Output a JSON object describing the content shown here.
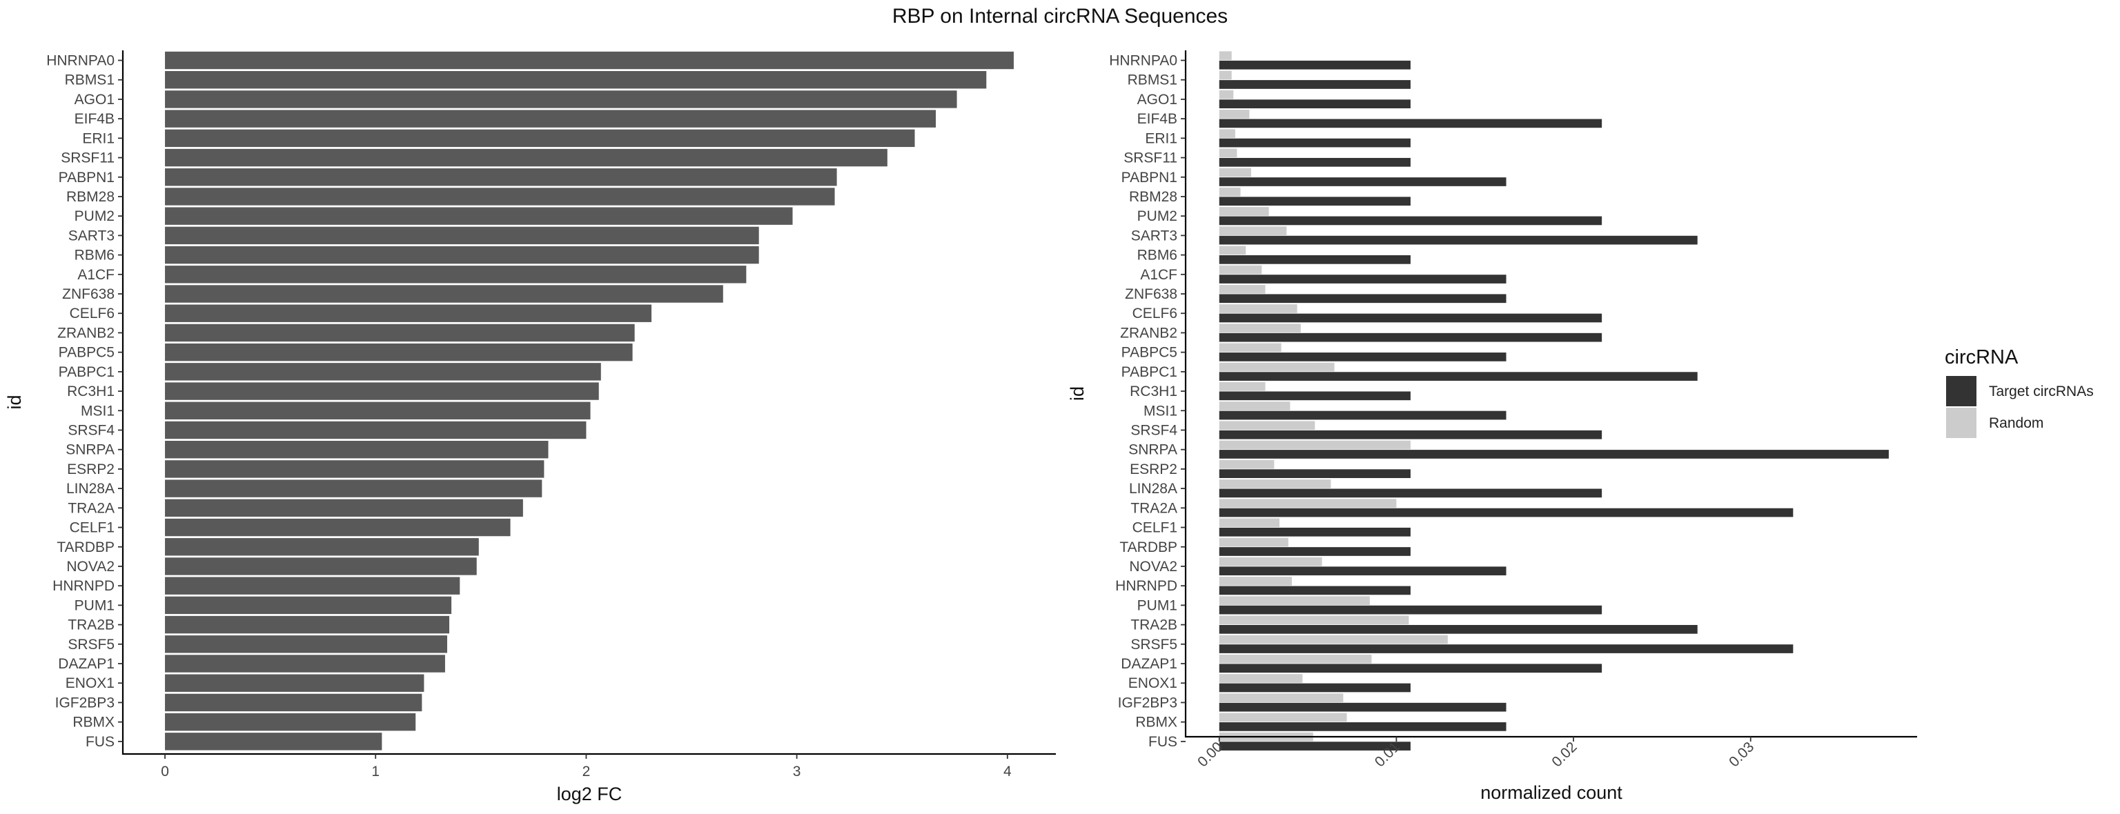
{
  "title": "RBP on Internal circRNA Sequences",
  "chart_data": [
    {
      "type": "bar",
      "orientation": "horizontal",
      "xlabel": "log2 FC",
      "ylabel": "id",
      "xlim": [
        -0.2,
        4.23
      ],
      "xticks": [
        "0",
        "1",
        "2",
        "3",
        "4"
      ],
      "grid": false,
      "bar_color": "#595959",
      "categories": [
        "HNRNPA0",
        "RBMS1",
        "AGO1",
        "EIF4B",
        "ERI1",
        "SRSF11",
        "PABPN1",
        "RBM28",
        "PUM2",
        "SART3",
        "RBM6",
        "A1CF",
        "ZNF638",
        "CELF6",
        "ZRANB2",
        "PABPC5",
        "PABPC1",
        "RC3H1",
        "MSI1",
        "SRSF4",
        "SNRPA",
        "ESRP2",
        "LIN28A",
        "TRA2A",
        "CELF1",
        "TARDBP",
        "NOVA2",
        "HNRNPD",
        "PUM1",
        "TRA2B",
        "SRSF5",
        "DAZAP1",
        "ENOX1",
        "IGF2BP3",
        "RBMX",
        "FUS"
      ],
      "values": [
        4.03,
        3.9,
        3.76,
        3.66,
        3.56,
        3.43,
        3.19,
        3.18,
        2.98,
        2.82,
        2.82,
        2.76,
        2.65,
        2.31,
        2.23,
        2.22,
        2.07,
        2.06,
        2.02,
        2.0,
        1.82,
        1.8,
        1.79,
        1.7,
        1.64,
        1.49,
        1.48,
        1.4,
        1.36,
        1.35,
        1.34,
        1.33,
        1.23,
        1.22,
        1.19,
        1.03
      ]
    },
    {
      "type": "bar",
      "orientation": "horizontal",
      "grouped": true,
      "xlabel": "normalized count",
      "ylabel": "id",
      "xlim": [
        -0.0019,
        0.0394
      ],
      "xticks": [
        "0.00",
        "0.01",
        "0.02",
        "0.03"
      ],
      "grid": false,
      "legend": {
        "title": "circRNA",
        "position": "right"
      },
      "categories": [
        "HNRNPA0",
        "RBMS1",
        "AGO1",
        "EIF4B",
        "ERI1",
        "SRSF11",
        "PABPN1",
        "RBM28",
        "PUM2",
        "SART3",
        "RBM6",
        "A1CF",
        "ZNF638",
        "CELF6",
        "ZRANB2",
        "PABPC5",
        "PABPC1",
        "RC3H1",
        "MSI1",
        "SRSF4",
        "SNRPA",
        "ESRP2",
        "LIN28A",
        "TRA2A",
        "CELF1",
        "TARDBP",
        "NOVA2",
        "HNRNPD",
        "PUM1",
        "TRA2B",
        "SRSF5",
        "DAZAP1",
        "ENOX1",
        "IGF2BP3",
        "RBMX",
        "FUS"
      ],
      "series": [
        {
          "name": "Random",
          "color": "#cccccc",
          "values": [
            0.0007,
            0.0007,
            0.0008,
            0.0017,
            0.0009,
            0.001,
            0.0018,
            0.0012,
            0.0028,
            0.0038,
            0.0015,
            0.0024,
            0.0026,
            0.0044,
            0.0046,
            0.0035,
            0.0065,
            0.0026,
            0.004,
            0.0054,
            0.0108,
            0.0031,
            0.0063,
            0.01,
            0.0034,
            0.0039,
            0.0058,
            0.0041,
            0.0085,
            0.0107,
            0.0129,
            0.0086,
            0.0047,
            0.007,
            0.0072,
            0.0053
          ]
        },
        {
          "name": "Target circRNAs",
          "color": "#333333",
          "values": [
            0.0108,
            0.0108,
            0.0108,
            0.0216,
            0.0108,
            0.0108,
            0.0162,
            0.0108,
            0.0216,
            0.027,
            0.0108,
            0.0162,
            0.0162,
            0.0216,
            0.0216,
            0.0162,
            0.027,
            0.0108,
            0.0162,
            0.0216,
            0.0378,
            0.0108,
            0.0216,
            0.0324,
            0.0108,
            0.0108,
            0.0162,
            0.0108,
            0.0216,
            0.027,
            0.0324,
            0.0216,
            0.0108,
            0.0162,
            0.0162,
            0.0108
          ]
        }
      ]
    }
  ]
}
